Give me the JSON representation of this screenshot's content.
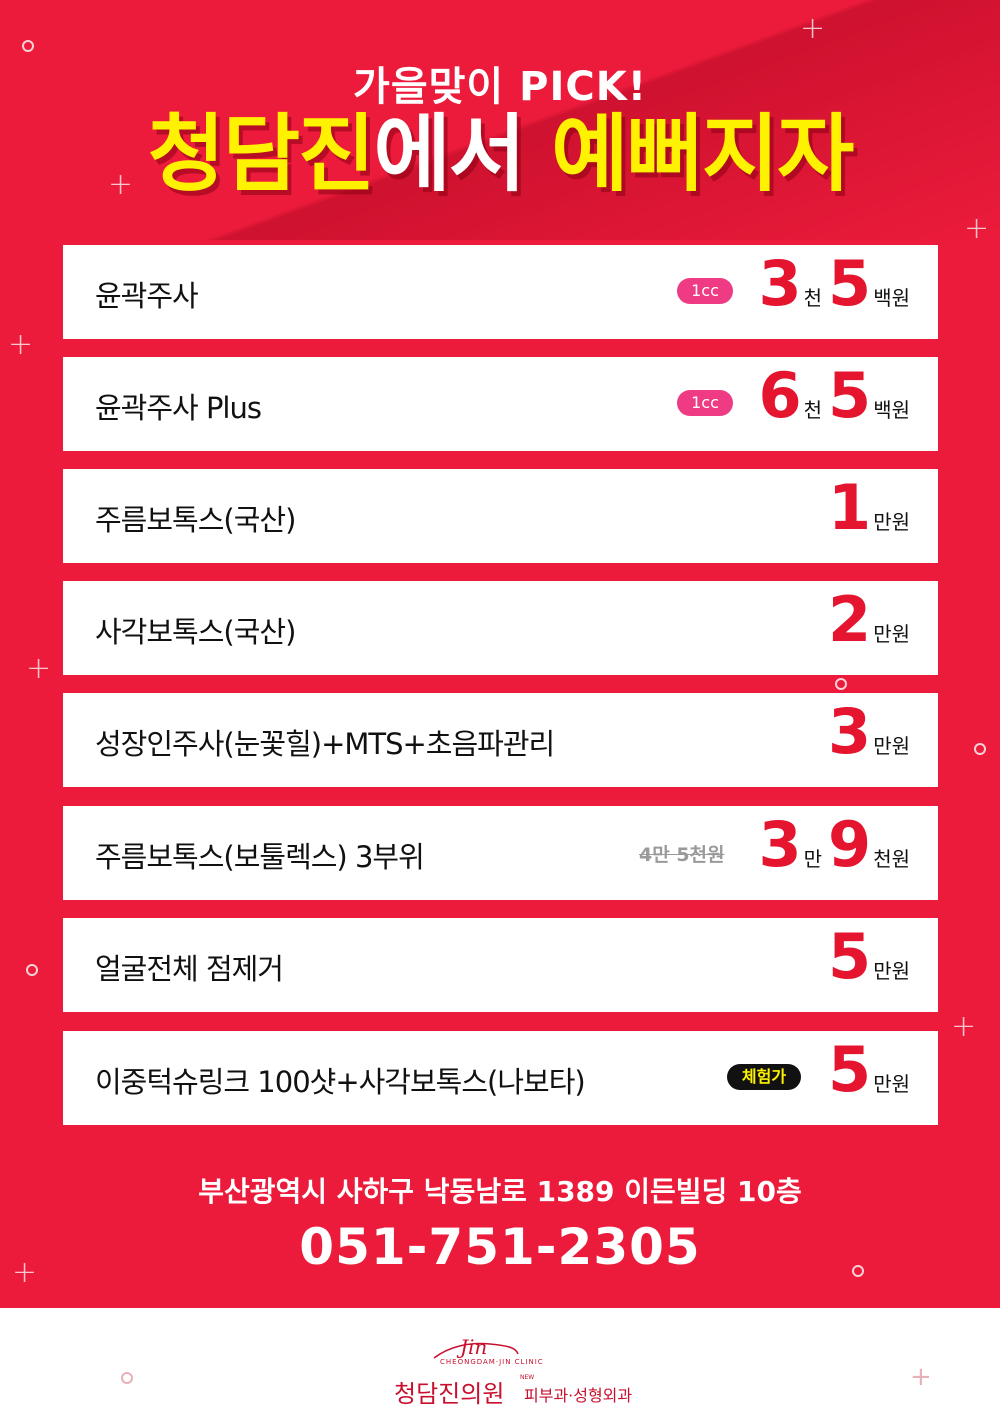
{
  "header": {
    "kicker": "가을맞이 PICK!",
    "headline_part1": "청담진",
    "headline_part2": "에서",
    "headline_part3": "예뻐지자"
  },
  "menu": [
    {
      "name": "윤곽주사",
      "badge": "1cc",
      "price": [
        {
          "num": "3",
          "unit": "천"
        },
        {
          "num": "5",
          "unit": "백원"
        }
      ]
    },
    {
      "name": "윤곽주사 Plus",
      "badge": "1cc",
      "price": [
        {
          "num": "6",
          "unit": "천"
        },
        {
          "num": "5",
          "unit": "백원"
        }
      ]
    },
    {
      "name": "주름보톡스(국산)",
      "price": [
        {
          "num": "1",
          "unit": "만원"
        }
      ]
    },
    {
      "name": "사각보톡스(국산)",
      "price": [
        {
          "num": "2",
          "unit": "만원"
        }
      ]
    },
    {
      "name": "성장인주사(눈꽃힐)+MTS+초음파관리",
      "price": [
        {
          "num": "3",
          "unit": "만원"
        }
      ]
    },
    {
      "name": "주름보톡스(보툴렉스) 3부위",
      "old_price": "4만 5천원",
      "price": [
        {
          "num": "3",
          "unit": "만"
        },
        {
          "num": "9",
          "unit": "천원"
        }
      ]
    },
    {
      "name": "얼굴전체 점제거",
      "price": [
        {
          "num": "5",
          "unit": "만원"
        }
      ]
    },
    {
      "name": "이중턱슈링크 100샷+사각보톡스(나보타)",
      "badge2": "체험가",
      "price": [
        {
          "num": "5",
          "unit": "만원"
        }
      ]
    }
  ],
  "contact": {
    "address": "부산광역시 사하구 낙동남로 1389 이든빌딩 10층",
    "phone": "051-751-2305"
  },
  "footer": {
    "logo_script": "Jin",
    "logo_sub": "CHEONGDAM·JIN CLINIC",
    "clinic_name": "청담진의원",
    "new_label": "NEW",
    "departments": "피부과·성형외과"
  },
  "colors": {
    "background": "#ec1b3b",
    "headline_yellow": "#fff200",
    "price_red": "#e5142f",
    "badge_pink": "#ee3b83"
  }
}
